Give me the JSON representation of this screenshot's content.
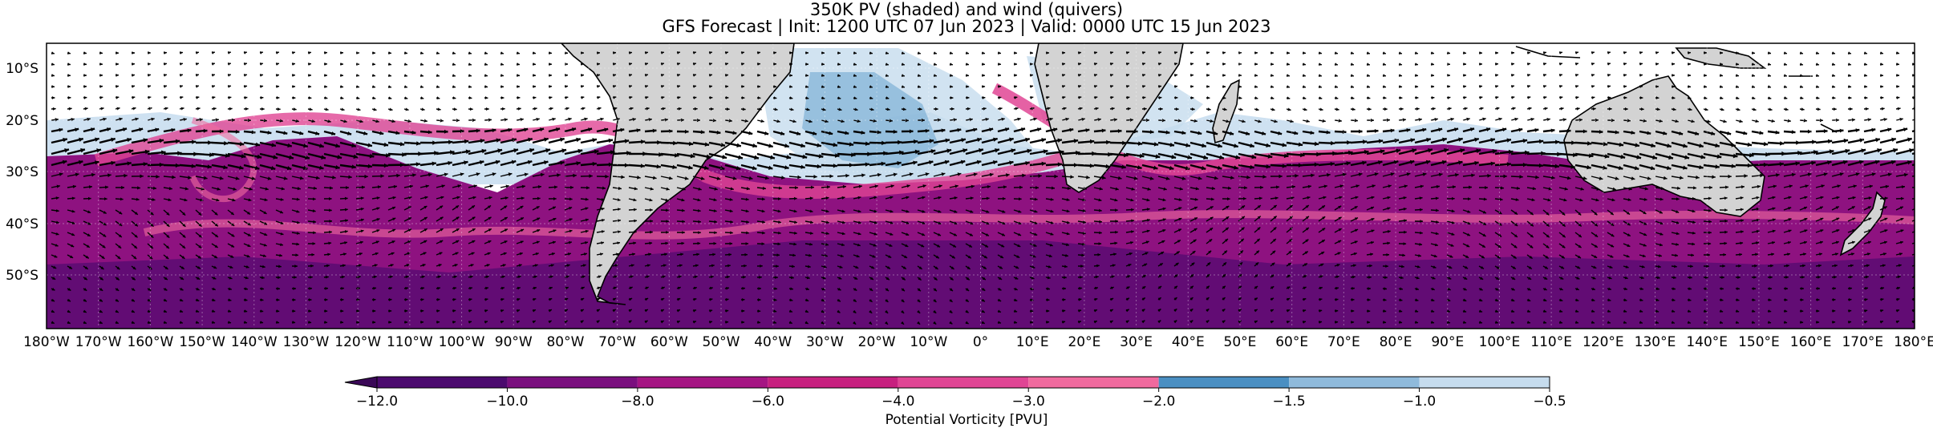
{
  "title": "350K PV (shaded) and wind (quivers)",
  "subtitle": "GFS Forecast | Init: 1200 UTC 07 Jun 2023 | Valid: 0000 UTC 15 Jun 2023",
  "lat_labels": [
    "10°S",
    "20°S",
    "30°S",
    "40°S",
    "50°S"
  ],
  "lon_labels": [
    "180°W",
    "170°W",
    "160°W",
    "150°W",
    "140°W",
    "130°W",
    "120°W",
    "110°W",
    "100°W",
    "90°W",
    "80°W",
    "70°W",
    "60°W",
    "50°W",
    "40°W",
    "30°W",
    "20°W",
    "10°W",
    "0°",
    "10°E",
    "20°E",
    "30°E",
    "40°E",
    "50°E",
    "60°E",
    "70°E",
    "80°E",
    "90°E",
    "100°E",
    "110°E",
    "120°E",
    "130°E",
    "140°E",
    "150°E",
    "160°E",
    "170°E",
    "180°E"
  ],
  "colorbar": {
    "label": "Potential Vorticity [PVU]",
    "ticks": [
      "−12.0",
      "−10.0",
      "−8.0",
      "−6.0",
      "−4.0",
      "−3.0",
      "−2.0",
      "−1.5",
      "−1.0",
      "−0.5"
    ],
    "colors": [
      "#4b0a6e",
      "#7a0f7e",
      "#a51583",
      "#c7207f",
      "#e04594",
      "#f06a9e",
      "#4a8fc2",
      "#8fbadb",
      "#c6dcee"
    ],
    "extend": "min"
  },
  "colors": {
    "land": "#d3d3d3",
    "deep_pv": "#8e1280",
    "pink_pv": "#d9368c",
    "light_blue": "#c6dcee",
    "mid_blue": "#7fb0d6"
  }
}
